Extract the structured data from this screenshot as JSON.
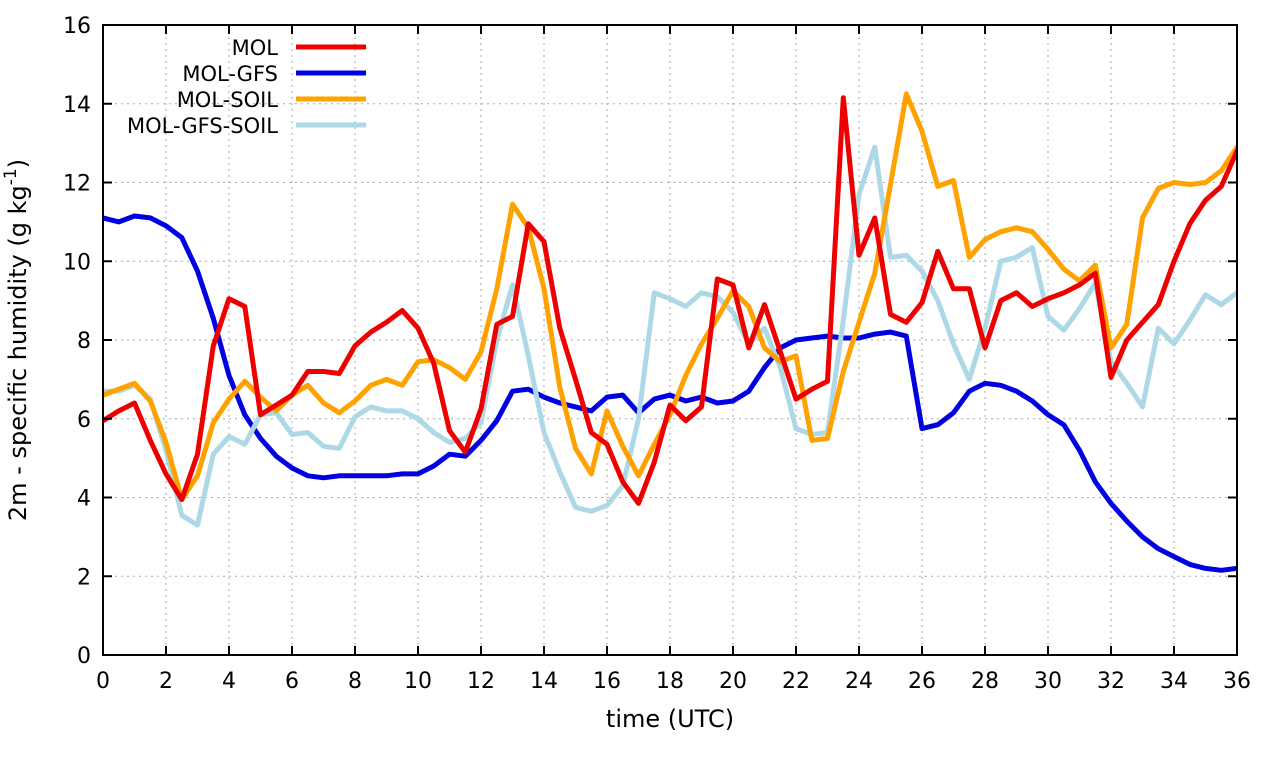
{
  "chart_data": {
    "type": "line",
    "title": "",
    "xlabel": "time (UTC)",
    "ylabel": {
      "pre": "2m - specific humidity (g kg",
      "sup": "-1",
      "post": ")"
    },
    "xlim": [
      0,
      36
    ],
    "ylim": [
      0,
      16
    ],
    "xticks": [
      0,
      2,
      4,
      6,
      8,
      10,
      12,
      14,
      16,
      18,
      20,
      22,
      24,
      26,
      28,
      30,
      32,
      34,
      36
    ],
    "yticks": [
      0,
      2,
      4,
      6,
      8,
      10,
      12,
      14,
      16
    ],
    "grid": true,
    "grid_color": "#a9a9a9",
    "border_color": "#000000",
    "background_color": "#ffffff",
    "legend_position": "top-left",
    "x_start": 0,
    "x_step": 0.5,
    "series": [
      {
        "name": "MOL",
        "color": "#ee0000",
        "values": [
          5.95,
          6.2,
          6.4,
          5.45,
          4.6,
          3.95,
          5.1,
          7.85,
          9.05,
          8.85,
          6.1,
          6.35,
          6.6,
          7.2,
          7.2,
          7.15,
          7.85,
          8.2,
          8.45,
          8.75,
          8.3,
          7.4,
          5.7,
          5.15,
          6.25,
          8.4,
          8.6,
          10.95,
          10.5,
          8.3,
          7.0,
          5.65,
          5.35,
          4.4,
          3.85,
          4.9,
          6.35,
          5.95,
          6.3,
          9.55,
          9.4,
          7.8,
          8.9,
          7.7,
          6.5,
          6.75,
          6.95,
          14.15,
          10.15,
          11.1,
          8.65,
          8.45,
          8.95,
          10.25,
          9.3,
          9.3,
          7.8,
          9.0,
          9.2,
          8.85,
          9.05,
          9.2,
          9.4,
          9.7,
          7.05,
          8.0,
          8.45,
          8.9,
          10.0,
          10.95,
          11.55,
          11.9,
          12.8
        ]
      },
      {
        "name": "MOL-GFS",
        "color": "#0000e0",
        "values": [
          11.1,
          11.0,
          11.15,
          11.1,
          10.9,
          10.6,
          9.75,
          8.55,
          7.1,
          6.1,
          5.5,
          5.05,
          4.75,
          4.55,
          4.5,
          4.55,
          4.55,
          4.55,
          4.55,
          4.6,
          4.6,
          4.8,
          5.1,
          5.05,
          5.45,
          5.95,
          6.7,
          6.75,
          6.55,
          6.4,
          6.3,
          6.2,
          6.55,
          6.6,
          6.15,
          6.5,
          6.6,
          6.45,
          6.55,
          6.4,
          6.45,
          6.7,
          7.3,
          7.8,
          8.0,
          8.05,
          8.1,
          8.05,
          8.05,
          8.15,
          8.2,
          8.1,
          5.75,
          5.85,
          6.15,
          6.7,
          6.9,
          6.85,
          6.7,
          6.45,
          6.1,
          5.85,
          5.2,
          4.4,
          3.85,
          3.4,
          3.0,
          2.7,
          2.5,
          2.3,
          2.2,
          2.15,
          2.2
        ]
      },
      {
        "name": "MOL-SOIL",
        "color": "#ffa200",
        "values": [
          6.6,
          6.75,
          6.9,
          6.45,
          5.4,
          3.95,
          4.55,
          5.9,
          6.5,
          6.95,
          6.55,
          6.2,
          6.6,
          6.85,
          6.4,
          6.15,
          6.45,
          6.85,
          7.0,
          6.85,
          7.45,
          7.5,
          7.3,
          7.0,
          7.7,
          9.3,
          11.45,
          10.85,
          9.3,
          6.8,
          5.25,
          4.6,
          6.2,
          5.3,
          4.55,
          5.35,
          6.1,
          7.1,
          7.9,
          8.55,
          9.25,
          8.85,
          7.8,
          7.45,
          7.6,
          5.45,
          5.5,
          7.2,
          8.45,
          9.7,
          11.95,
          14.25,
          13.3,
          11.9,
          12.05,
          10.1,
          10.55,
          10.75,
          10.85,
          10.75,
          10.3,
          9.8,
          9.5,
          9.9,
          7.8,
          8.4,
          11.1,
          11.85,
          12.0,
          11.95,
          12.0,
          12.3,
          12.9
        ]
      },
      {
        "name": "MOL-GFS-SOIL",
        "color": "#add8e6",
        "values": [
          6.7,
          6.7,
          6.85,
          6.5,
          5.2,
          3.55,
          3.3,
          5.1,
          5.55,
          5.35,
          6.1,
          6.15,
          5.6,
          5.65,
          5.3,
          5.25,
          6.05,
          6.3,
          6.2,
          6.2,
          6.0,
          5.65,
          5.4,
          5.5,
          5.9,
          8.0,
          9.4,
          7.6,
          5.65,
          4.65,
          3.75,
          3.65,
          3.8,
          4.3,
          6.0,
          9.2,
          9.05,
          8.85,
          9.2,
          9.1,
          8.7,
          7.9,
          8.3,
          7.3,
          5.75,
          5.6,
          5.65,
          8.5,
          11.7,
          12.9,
          10.1,
          10.15,
          9.75,
          9.0,
          7.9,
          7.0,
          8.3,
          10.0,
          10.1,
          10.35,
          8.6,
          8.25,
          8.8,
          9.45,
          7.45,
          6.9,
          6.3,
          8.3,
          7.9,
          8.5,
          9.15,
          8.9,
          9.2
        ]
      }
    ]
  }
}
